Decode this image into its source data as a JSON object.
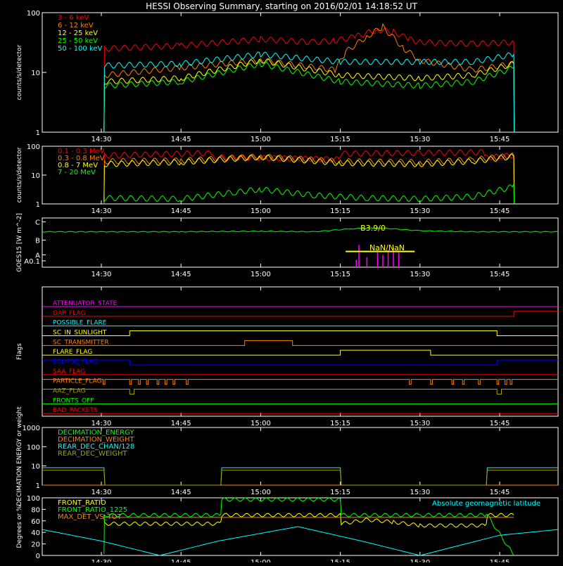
{
  "title": "HESSI Observing Summary, starting on 2016/02/01 14:18:52 UT",
  "time_axis": {
    "start": "14:18:52",
    "end": "15:56:00",
    "tick_labels": [
      "14:30",
      "14:45",
      "15:00",
      "15:15",
      "15:30",
      "15:45"
    ]
  },
  "colors": {
    "background": "#000000",
    "axes": "#ffffff",
    "red": "#ff0000",
    "orange": "#ff8000",
    "yellow": "#ffff00",
    "green": "#00ff00",
    "cyan": "#00ffff",
    "blue": "#0000ff",
    "magenta": "#ff00ff",
    "olive": "#a0a000"
  },
  "chart_data": [
    {
      "id": "panel1",
      "type": "line",
      "ylabel": "counts/s/detector",
      "yscale": "log",
      "ylim": [
        1,
        100
      ],
      "y_tick_labels": [
        "1",
        "10",
        "100"
      ],
      "legend_placement": "top-left",
      "series": [
        {
          "name": "3 - 6 keV",
          "color": "#ff0000",
          "x": [
            "14:30:30",
            "14:30:35",
            "14:45",
            "15:00",
            "15:10",
            "15:14",
            "15:18",
            "15:22",
            "15:25",
            "15:28",
            "15:30",
            "15:40",
            "15:47:40",
            "15:47:45"
          ],
          "y": [
            1,
            25,
            28,
            36,
            32,
            34,
            40,
            52,
            48,
            36,
            32,
            30,
            32,
            1
          ]
        },
        {
          "name": "6 - 12 keV",
          "color": "#ff8000",
          "x": [
            "14:30:30",
            "14:30:35",
            "14:45",
            "15:00",
            "15:14",
            "15:16",
            "15:20",
            "15:23",
            "15:27",
            "15:30",
            "15:40",
            "15:47:40",
            "15:47:45"
          ],
          "y": [
            1,
            9,
            12,
            16,
            11,
            22,
            40,
            58,
            25,
            16,
            11,
            14,
            1
          ]
        },
        {
          "name": "12 - 25 keV",
          "color": "#ffff00",
          "x": [
            "14:30:30",
            "14:30:35",
            "14:45",
            "15:00",
            "15:15",
            "15:30",
            "15:40",
            "15:47:40",
            "15:47:45"
          ],
          "y": [
            1,
            7,
            8,
            16,
            9,
            8,
            9,
            14,
            1
          ]
        },
        {
          "name": "25 - 50 keV",
          "color": "#00ff00",
          "x": [
            "14:30:30",
            "14:30:35",
            "14:45",
            "15:00",
            "15:15",
            "15:30",
            "15:40",
            "15:47:40",
            "15:47:45"
          ],
          "y": [
            1,
            6,
            7,
            14,
            7,
            6,
            7,
            12,
            1
          ]
        },
        {
          "name": "50 - 100 keV",
          "color": "#00ffff",
          "x": [
            "14:30:30",
            "14:30:35",
            "14:45",
            "15:00",
            "15:15",
            "15:30",
            "15:40",
            "15:47:40",
            "15:47:45"
          ],
          "y": [
            1,
            13,
            14,
            20,
            15,
            15,
            15,
            20,
            1
          ]
        }
      ]
    },
    {
      "id": "panel2",
      "type": "line",
      "ylabel": "counts/s/detector",
      "yscale": "log",
      "ylim": [
        1,
        100
      ],
      "y_tick_labels": [
        "1",
        "10",
        "100"
      ],
      "legend_placement": "top-left",
      "series": [
        {
          "name": "0.1 - 0.3 MeV",
          "color": "#ff0000",
          "x": [
            "14:30:30",
            "14:30:35",
            "14:51",
            "14:51:10",
            "15:15",
            "15:15:10",
            "15:42",
            "15:42:10",
            "15:47:40",
            "15:47:45"
          ],
          "y": [
            1,
            48,
            58,
            42,
            35,
            55,
            62,
            40,
            48,
            1
          ]
        },
        {
          "name": "0.3 - 0.8 MeV",
          "color": "#ff8000",
          "x": [
            "14:30:30",
            "14:30:35",
            "14:45",
            "15:00",
            "15:15",
            "15:30",
            "15:40",
            "15:47:40",
            "15:47:45"
          ],
          "y": [
            1,
            30,
            32,
            44,
            30,
            28,
            34,
            48,
            1
          ]
        },
        {
          "name": "0.8 - 7 MeV",
          "color": "#ffff00",
          "x": [
            "14:30:30",
            "14:30:35",
            "14:45",
            "15:00",
            "15:15",
            "15:30",
            "15:40",
            "15:47:40",
            "15:47:45"
          ],
          "y": [
            1,
            24,
            28,
            42,
            26,
            24,
            30,
            44,
            1
          ]
        },
        {
          "name": "7 - 20 MeV",
          "color": "#00ff00",
          "x": [
            "14:30:30",
            "14:30:35",
            "14:45",
            "14:55",
            "15:00",
            "15:10",
            "15:20",
            "15:30",
            "15:40",
            "15:47:40",
            "15:47:45"
          ],
          "y": [
            1,
            1.6,
            1.5,
            2.5,
            3.2,
            2,
            1.6,
            1.5,
            1.8,
            4,
            1
          ]
        }
      ]
    },
    {
      "id": "panel3",
      "type": "line",
      "ylabel": "GOES15 [W m^-2]",
      "y_tick_labels": [
        "A0.1",
        "A",
        "B",
        "C"
      ],
      "annotations": [
        "B3.9/0",
        "NaN/NaN"
      ],
      "series": [
        {
          "color": "#00ff00",
          "x": [
            "14:18:52",
            "14:45",
            "15:00",
            "15:10",
            "15:17",
            "15:22",
            "15:30",
            "15:40",
            "15:56"
          ],
          "y": [
            0.72,
            0.72,
            0.73,
            0.72,
            0.78,
            0.8,
            0.74,
            0.72,
            0.72
          ]
        }
      ],
      "spikes": {
        "color": "#ff00ff",
        "x": [
          "15:18",
          "15:18:30",
          "15:20",
          "15:22",
          "15:23",
          "15:24",
          "15:25",
          "15:26"
        ],
        "y": [
          0.15,
          0.45,
          0.2,
          0.3,
          0.25,
          0.35,
          0.4,
          0.3
        ]
      },
      "bar": {
        "color": "#ffff00",
        "x": [
          "15:16",
          "15:29"
        ],
        "y": 0.32
      }
    },
    {
      "id": "panel4",
      "type": "line",
      "ylabel": "Flags",
      "flags": [
        {
          "name": "ATTENUATOR_STATE",
          "color": "#ff00ff",
          "transitions": []
        },
        {
          "name": "GAP_FLAG",
          "color": "#ff0000",
          "transitions": [
            "15:47:40"
          ]
        },
        {
          "name": "POSSIBLE_FLARE",
          "color": "#00ffff",
          "transitions": []
        },
        {
          "name": "SC_IN_SUNLIGHT",
          "color": "#ffff00",
          "transitions": [
            "14:35:20",
            "15:44:30"
          ]
        },
        {
          "name": "SC_TRANSMITTER",
          "color": "#ff8000",
          "transitions": [
            "14:57",
            "15:06"
          ]
        },
        {
          "name": "FLARE_FLAG",
          "color": "#ffff00",
          "transitions": [
            "15:15",
            "15:32"
          ]
        },
        {
          "name": "ECLIPSE_FLAG",
          "color": "#0000ff",
          "transitions": [
            "14:35:20",
            "15:44:30"
          ],
          "start_high": true
        },
        {
          "name": "SAA_FLAG",
          "color": "#ff0000",
          "transitions": []
        },
        {
          "name": "PARTICLE_FLAG",
          "color": "#ff8000",
          "transitions": [
            "14:30:20",
            "14:30:40",
            "14:35:20",
            "14:35:40",
            "14:37",
            "14:37:20",
            "14:38:30",
            "14:38:50",
            "14:40:30",
            "14:40:50",
            "14:42",
            "14:42:20",
            "14:43:30",
            "14:43:50",
            "14:46",
            "14:46:20",
            "15:28",
            "15:28:20",
            "15:32",
            "15:32:20",
            "15:36",
            "15:36:20",
            "15:38",
            "15:38:20",
            "15:41",
            "15:41:20",
            "15:44:30",
            "15:44:50",
            "15:46",
            "15:46:20",
            "15:47",
            "15:47:20"
          ],
          "start_high": true
        },
        {
          "name": "AAZ_FLAG",
          "color": "#a0a000",
          "transitions": [
            "14:35:20",
            "14:36:10",
            "15:44:30",
            "15:45:20"
          ],
          "start_high": true
        },
        {
          "name": "FRONTS_OFF",
          "color": "#00ff00",
          "transitions": []
        },
        {
          "name": "BAD_PACKETS",
          "color": "#ff0000",
          "transitions": []
        }
      ]
    },
    {
      "id": "panel5",
      "type": "line",
      "ylabel": "DECIMATION ENERGY or weight",
      "yscale": "log",
      "ylim": [
        1,
        1000
      ],
      "y_tick_labels": [
        "1",
        "10",
        "100",
        "1000"
      ],
      "legend_placement": "top-left",
      "series": [
        {
          "name": "DECIMATION_ENERGY",
          "color": "#00ff00",
          "x": [
            "14:18:52",
            "15:56"
          ],
          "y": [
            1,
            1
          ]
        },
        {
          "name": "DECIMATION_WEIGHT",
          "color": "#ff8000",
          "x": [
            "14:18:52",
            "15:56"
          ],
          "y": [
            1,
            1
          ]
        },
        {
          "name": "REAR_DEC_CHAN/128",
          "color": "#00ffff",
          "x": [
            "14:18:52",
            "14:30:30",
            "14:30:40",
            "14:52:30",
            "14:52:40",
            "15:15",
            "15:15:10",
            "15:42:30",
            "15:42:40",
            "15:56"
          ],
          "y": [
            8,
            8,
            1,
            1,
            8,
            8,
            1,
            1,
            8,
            8
          ]
        },
        {
          "name": "REAR_DEC_WEIGHT",
          "color": "#a0a000",
          "x": [
            "14:18:52",
            "14:30:30",
            "14:30:40",
            "14:52:30",
            "14:52:40",
            "15:15",
            "15:15:10",
            "15:42:30",
            "15:42:40",
            "15:56"
          ],
          "y": [
            6,
            6,
            1,
            1,
            6,
            6,
            1,
            1,
            6,
            6
          ]
        }
      ]
    },
    {
      "id": "panel6",
      "type": "line",
      "ylabel": "Degrees or %",
      "ylim": [
        0,
        100
      ],
      "y_tick_labels": [
        "0",
        "20",
        "40",
        "60",
        "80",
        "100"
      ],
      "legend_placement": "top-left",
      "series": [
        {
          "name": "FRONT_RATIO",
          "color": "#ffff00",
          "x": [
            "14:30:30",
            "14:30:35",
            "14:52:30",
            "14:52:40",
            "15:15",
            "15:15:10",
            "15:20",
            "15:25",
            "15:30",
            "15:42:30",
            "15:42:40",
            "15:47:40"
          ],
          "y": [
            70,
            55,
            55,
            70,
            70,
            55,
            62,
            58,
            52,
            52,
            70,
            70
          ]
        },
        {
          "name": "FRONT_RATIO_1225",
          "color": "#00ff00",
          "x": [
            "14:30:30",
            "14:30:35",
            "14:52:30",
            "14:52:40",
            "15:15",
            "15:15:10",
            "15:30",
            "15:42:30",
            "15:42:40",
            "15:47:40"
          ],
          "y": [
            0,
            70,
            70,
            97,
            97,
            70,
            70,
            70,
            70,
            0
          ]
        },
        {
          "name": "MAX_DET_VS_TOT",
          "color": "#ff8000",
          "x": [
            "14:30:30",
            "15:47:40"
          ],
          "y": [
            66,
            66
          ]
        },
        {
          "name": "Absolute geomagnetic latitude",
          "color": "#00ffff",
          "x": [
            "14:18:52",
            "14:30",
            "14:41",
            "14:52",
            "15:07",
            "15:19",
            "15:30",
            "15:45",
            "15:56"
          ],
          "y": [
            45,
            25,
            0,
            25,
            50,
            25,
            0,
            35,
            45
          ]
        }
      ]
    }
  ]
}
